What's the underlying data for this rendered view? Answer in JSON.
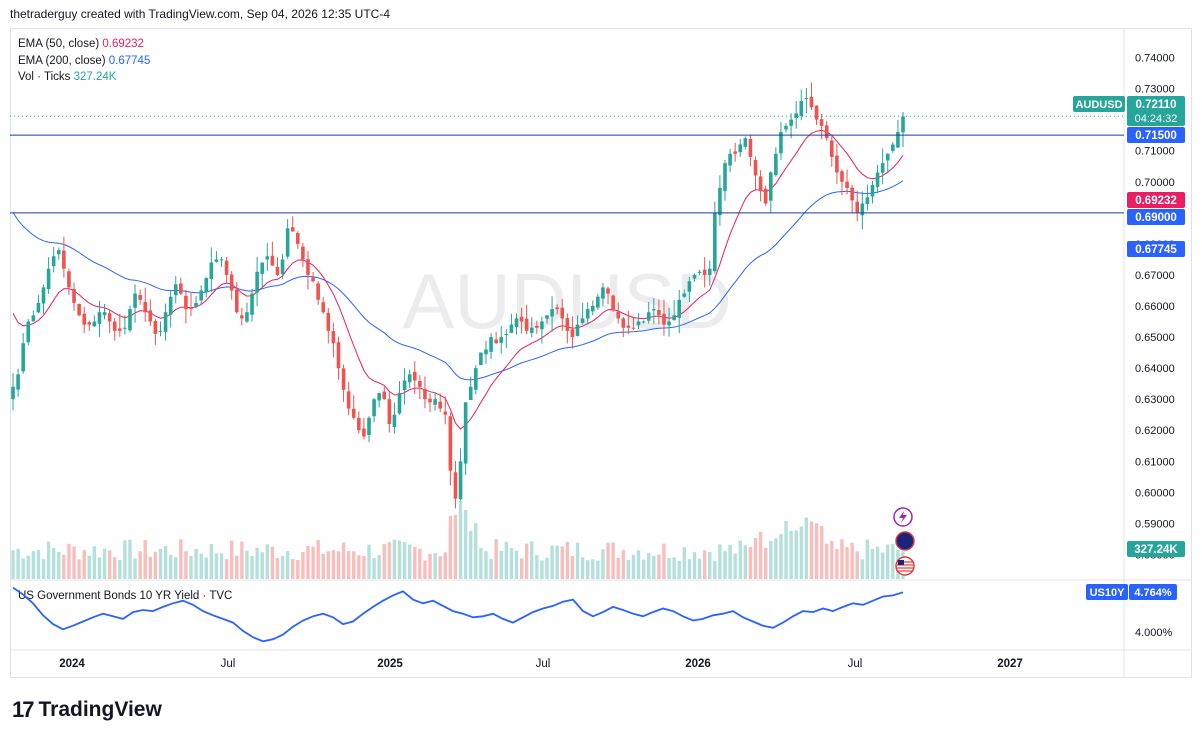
{
  "header": {
    "attribution": "thetraderguy created with TradingView.com, Sep 04, 2026 12:35 UTC-4"
  },
  "legend": {
    "ema50_label": "EMA (50, close)",
    "ema50_value": "0.69232",
    "ema200_label": "EMA (200, close)",
    "ema200_value": "0.67745",
    "vol_label": "Vol · Ticks",
    "vol_value": "327.24K"
  },
  "watermark": "AUDUSD",
  "brand": {
    "logo": "17",
    "name": "TradingView"
  },
  "colors": {
    "up": "#26a69a",
    "down": "#ef5350",
    "ema50": "#e91e63",
    "ema200": "#2962ff",
    "bond": "#2962ff",
    "hline": "#1e3aa8"
  },
  "chart_data": [
    {
      "type": "candlestick",
      "symbol": "AUDUSD",
      "price_axis": {
        "min": 0.575,
        "max": 0.745,
        "ticks": [
          "0.74000",
          "0.73000",
          "0.72000",
          "0.71000",
          "0.70000",
          "0.69000",
          "0.68000",
          "0.67000",
          "0.66000",
          "0.65000",
          "0.64000",
          "0.63000",
          "0.62000",
          "0.61000",
          "0.60000",
          "0.59000",
          "0.58000"
        ]
      },
      "time_axis": {
        "labels": [
          "2024",
          "Jul",
          "2025",
          "Jul",
          "2026",
          "Jul",
          "2027"
        ]
      },
      "price_labels": [
        {
          "text": "AUDUSD",
          "value": "0.72110",
          "countdown": "04:24:32",
          "color": "#26a69a"
        },
        {
          "value": "0.71500",
          "color": "#2962ff"
        },
        {
          "value": "0.69232",
          "color": "#e91e63"
        },
        {
          "value": "0.69000",
          "color": "#2962ff"
        },
        {
          "value": "0.67745",
          "color": "#2962ff"
        },
        {
          "value": "327.24K",
          "color": "#26a69a"
        }
      ],
      "horizontal_lines": [
        0.715,
        0.69
      ],
      "last_price": 0.7211,
      "close": [
        0.634,
        0.638,
        0.648,
        0.655,
        0.657,
        0.661,
        0.666,
        0.672,
        0.676,
        0.678,
        0.672,
        0.666,
        0.661,
        0.657,
        0.654,
        0.654,
        0.655,
        0.658,
        0.658,
        0.655,
        0.652,
        0.652,
        0.653,
        0.659,
        0.664,
        0.662,
        0.658,
        0.655,
        0.651,
        0.652,
        0.658,
        0.663,
        0.667,
        0.664,
        0.659,
        0.659,
        0.661,
        0.665,
        0.669,
        0.674,
        0.675,
        0.675,
        0.67,
        0.665,
        0.658,
        0.656,
        0.658,
        0.664,
        0.671,
        0.674,
        0.676,
        0.673,
        0.67,
        0.675,
        0.685,
        0.684,
        0.68,
        0.675,
        0.67,
        0.668,
        0.662,
        0.658,
        0.652,
        0.648,
        0.64,
        0.633,
        0.627,
        0.624,
        0.62,
        0.618,
        0.624,
        0.63,
        0.632,
        0.63,
        0.622,
        0.625,
        0.632,
        0.636,
        0.638,
        0.636,
        0.634,
        0.63,
        0.629,
        0.63,
        0.627,
        0.625,
        0.607,
        0.598,
        0.61,
        0.629,
        0.634,
        0.64,
        0.645,
        0.646,
        0.65,
        0.648,
        0.65,
        0.651,
        0.654,
        0.656,
        0.655,
        0.652,
        0.653,
        0.653,
        0.655,
        0.657,
        0.659,
        0.659,
        0.656,
        0.652,
        0.65,
        0.654,
        0.656,
        0.659,
        0.66,
        0.663,
        0.666,
        0.664,
        0.659,
        0.656,
        0.653,
        0.653,
        0.653,
        0.655,
        0.655,
        0.658,
        0.659,
        0.657,
        0.654,
        0.655,
        0.657,
        0.662,
        0.664,
        0.668,
        0.67,
        0.671,
        0.67,
        0.672,
        0.69,
        0.698,
        0.706,
        0.709,
        0.709,
        0.712,
        0.714,
        0.708,
        0.702,
        0.697,
        0.693,
        0.703,
        0.709,
        0.716,
        0.718,
        0.72,
        0.722,
        0.726,
        0.727,
        0.724,
        0.72,
        0.718,
        0.714,
        0.708,
        0.703,
        0.7,
        0.698,
        0.694,
        0.69,
        0.693,
        0.695,
        0.699,
        0.703,
        0.706,
        0.709,
        0.712,
        0.716,
        0.721
      ],
      "ema50_endpoints": {
        "start": 0.662,
        "end": 0.69232
      },
      "ema200_endpoints": {
        "start": 0.693,
        "end": 0.67745
      }
    },
    {
      "type": "line",
      "title": "US Government Bonds 10 YR Yield · TVC",
      "symbol": "US10Y",
      "last_value": "4.764%",
      "ticks": [
        "4.000%"
      ],
      "values": [
        4.85,
        4.72,
        4.55,
        4.32,
        4.15,
        4.05,
        4.12,
        4.2,
        4.28,
        4.35,
        4.3,
        4.25,
        4.38,
        4.42,
        4.4,
        4.48,
        4.55,
        4.6,
        4.52,
        4.4,
        4.32,
        4.25,
        4.18,
        4.02,
        3.9,
        3.82,
        3.86,
        3.95,
        4.1,
        4.22,
        4.3,
        4.35,
        4.28,
        4.15,
        4.2,
        4.35,
        4.48,
        4.6,
        4.7,
        4.78,
        4.62,
        4.55,
        4.6,
        4.5,
        4.4,
        4.35,
        4.28,
        4.3,
        4.35,
        4.25,
        4.18,
        4.28,
        4.38,
        4.45,
        4.5,
        4.58,
        4.62,
        4.4,
        4.3,
        4.38,
        4.48,
        4.42,
        4.35,
        4.3,
        4.38,
        4.45,
        4.4,
        4.3,
        4.22,
        4.25,
        4.32,
        4.35,
        4.4,
        4.28,
        4.2,
        4.12,
        4.08,
        4.18,
        4.3,
        4.4,
        4.38,
        4.45,
        4.4,
        4.48,
        4.55,
        4.52,
        4.6,
        4.68,
        4.7,
        4.76
      ]
    }
  ]
}
